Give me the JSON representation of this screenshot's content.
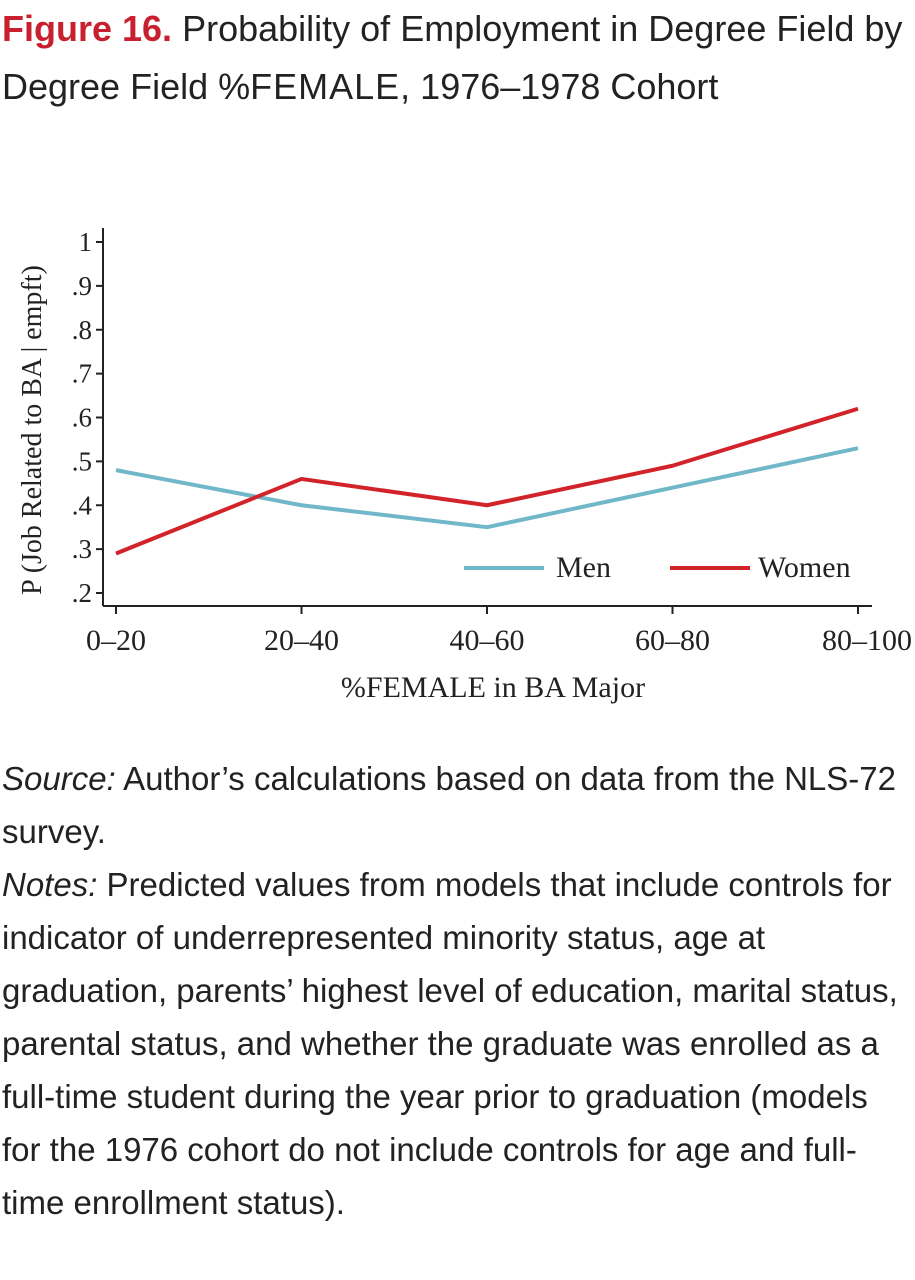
{
  "figure": {
    "label": "Figure 16.",
    "title_part1": "Probability of Employment in Degree Field by Degree Field %",
    "title_smallcaps": "FEMALE",
    "title_part2": ", 1976–1978 Cohort"
  },
  "chart_data": {
    "type": "line",
    "categories": [
      "0–20",
      "20–40",
      "40–60",
      "60–80",
      "80–100"
    ],
    "series": [
      {
        "name": "Men",
        "values": [
          0.48,
          0.4,
          0.35,
          0.44,
          0.53
        ],
        "color": "#6fb7c9"
      },
      {
        "name": "Women",
        "values": [
          0.29,
          0.46,
          0.4,
          0.49,
          0.62
        ],
        "color": "#d2232a"
      }
    ],
    "ylabel": "P (Job Related to BA | empft)",
    "xlabel": "%FEMALE in BA Major",
    "ylim": [
      0.2,
      1.0
    ],
    "yticks": [
      0.2,
      0.3,
      0.4,
      0.5,
      0.6,
      0.7,
      0.8,
      0.9,
      1.0
    ],
    "ytick_labels": [
      ".2",
      ".3",
      ".4",
      ".5",
      ".6",
      ".7",
      ".8",
      ".9",
      "1"
    ],
    "grid": false,
    "legend_position": "bottom-right"
  },
  "notes": {
    "source_label": "Source:",
    "source_text": " Author’s calculations based on data from the NLS-72 survey.",
    "notes_label": "Notes:",
    "notes_text": " Predicted values from models that include controls for indicator of underrepresented minority status, age at graduation, parents’ highest level of education, marital status, parental status, and whether the graduate was enrolled as a full-time student during the year prior to graduation (models for the 1976 cohort do not include controls for age and full-time enrollment status)."
  }
}
